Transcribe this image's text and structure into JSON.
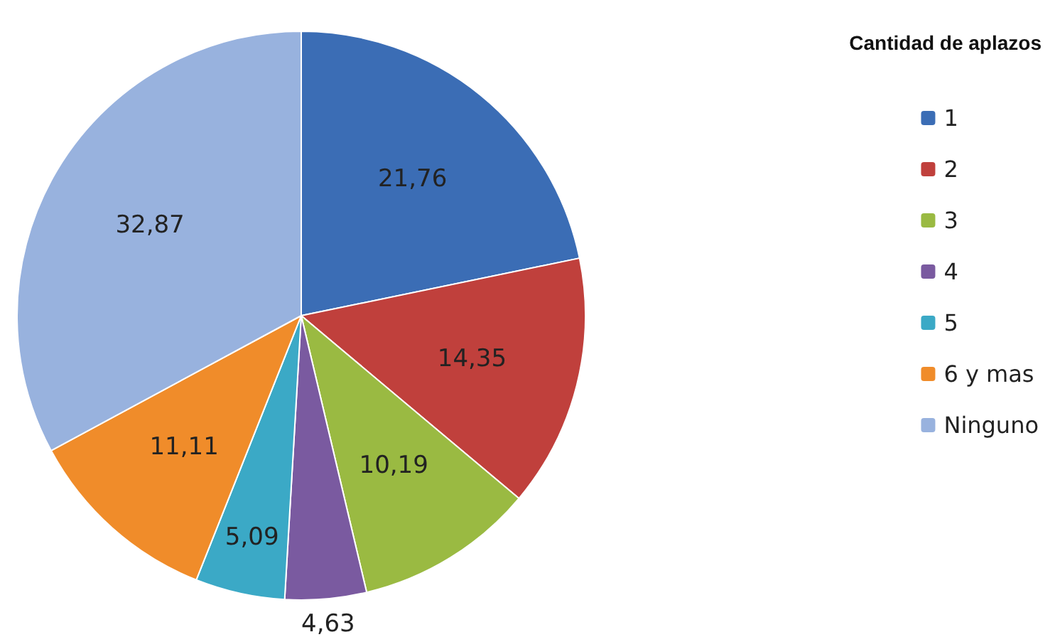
{
  "chart_data": {
    "type": "pie",
    "legend_title": "Cantidad de aplazos",
    "legend": "right",
    "categories": [
      "1",
      "2",
      "3",
      "4",
      "5",
      "6 y mas",
      "Ninguno"
    ],
    "values": [
      21.76,
      14.35,
      10.19,
      4.63,
      5.09,
      11.11,
      32.87
    ],
    "value_labels": [
      "21,76",
      "14,35",
      "10,19",
      "4,63",
      "5,09",
      "11,11",
      "32,87"
    ],
    "colors": [
      "#3b6db5",
      "#c0403c",
      "#9aba42",
      "#7a5aa0",
      "#3ba9c6",
      "#f08c2a",
      "#98b2de"
    ]
  }
}
